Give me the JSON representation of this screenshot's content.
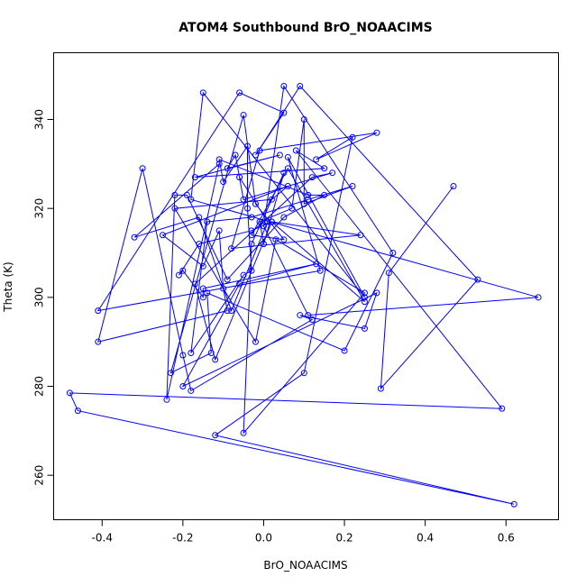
{
  "chart_data": {
    "type": "line",
    "title": "ATOM4 Southbound BrO_NOAACIMS",
    "xlabel": "BrO_NOAACIMS",
    "ylabel": "Theta (K)",
    "xlim": [
      -0.52,
      0.73
    ],
    "ylim": [
      250,
      355
    ],
    "x_ticks": [
      -0.4,
      -0.2,
      0.0,
      0.2,
      0.4,
      0.6
    ],
    "x_tick_labels": [
      "-0.4",
      "-0.2",
      "0.0",
      "0.2",
      "0.4",
      "0.6"
    ],
    "y_ticks": [
      260,
      280,
      300,
      320,
      340
    ],
    "y_tick_labels": [
      "260",
      "280",
      "300",
      "320",
      "340"
    ],
    "grid": false,
    "series": [
      {
        "color": "#0000ff",
        "x": [
          0.47,
          0.31,
          0.29,
          0.53,
          0.09,
          -0.02,
          0.05,
          -0.06,
          -0.41,
          0.14,
          0.06,
          0.25,
          -0.15,
          -0.18,
          0.68,
          0.11,
          0.0,
          0.05,
          0.32,
          0.2,
          -0.14,
          -0.13,
          -0.23,
          -0.05,
          -0.02,
          0.05,
          -0.03,
          0.06,
          0.25,
          0.02,
          -0.12,
          -0.17,
          0.12,
          0.17,
          -0.05,
          -0.07,
          -0.09,
          0.04,
          -0.17,
          0.15,
          0.08,
          0.59,
          -0.48,
          -0.46,
          0.62,
          -0.12,
          0.1,
          0.22,
          0.13,
          0.28,
          -0.01,
          -0.08,
          0.24,
          0.02,
          -0.03,
          -0.16,
          -0.21,
          -0.2,
          -0.15,
          -0.15,
          0.13,
          -0.06,
          -0.2,
          0.28,
          0.25,
          0.09,
          0.12,
          -0.18,
          -0.2,
          -0.3,
          -0.41,
          -0.09,
          -0.1,
          -0.11,
          -0.15,
          -0.25,
          0.06,
          0.02,
          -0.22,
          -0.02,
          0.03,
          0.25,
          -0.05,
          -0.03,
          0.05,
          0.0,
          -0.01,
          0.07,
          0.1,
          0.1,
          0.22,
          0.11,
          -0.03,
          -0.14,
          -0.18,
          -0.05,
          -0.03,
          -0.04,
          -0.04,
          -0.1,
          -0.11,
          0.11,
          0.15,
          0.05,
          -0.09,
          -0.19,
          -0.22,
          -0.24,
          -0.11,
          -0.32,
          -0.16,
          -0.08,
          0.01,
          -0.06
        ],
        "y": [
          325,
          305.5,
          279.5,
          304,
          347.5,
          332,
          341.5,
          346,
          297,
          306,
          331.5,
          300,
          346,
          322,
          300,
          296,
          316,
          347.5,
          310,
          288,
          301,
          287.5,
          283,
          341,
          321,
          313,
          314,
          329,
          299,
          317,
          286,
          303,
          327,
          328,
          322,
          332,
          329,
          332,
          327,
          329,
          333,
          275,
          278.5,
          274.5,
          253.5,
          269,
          283,
          336,
          331,
          337,
          333,
          311,
          314,
          317,
          315,
          312,
          305,
          306,
          300,
          302,
          307.5,
          303,
          280,
          301,
          293,
          296,
          295,
          279,
          287,
          329,
          290,
          297,
          302,
          315,
          307,
          314,
          325,
          322,
          320,
          290,
          313,
          301,
          269.5,
          312,
          328,
          312,
          317,
          320,
          340,
          321,
          325,
          322,
          318,
          317,
          287.5,
          305,
          306,
          320,
          334,
          326,
          331,
          323,
          323,
          318,
          304,
          323,
          323,
          277,
          330,
          313.5,
          318,
          297,
          317,
          327
        ]
      }
    ]
  }
}
